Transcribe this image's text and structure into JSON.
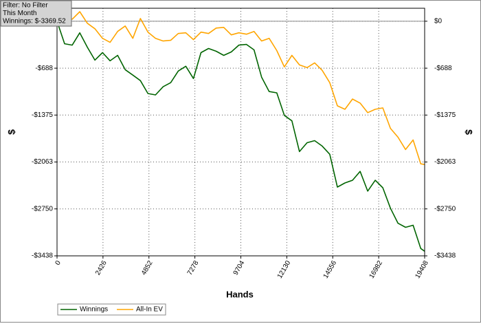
{
  "chart_data": {
    "type": "line",
    "annotations": [
      "Filter: No Filter",
      "This Month",
      "Winnings: $-3369.52"
    ],
    "x_label": "Hands",
    "y_label": "$",
    "x": [
      0,
      400,
      800,
      1200,
      1600,
      2000,
      2400,
      2800,
      3200,
      3600,
      4000,
      4400,
      4800,
      5200,
      5600,
      6000,
      6400,
      6800,
      7200,
      7600,
      8000,
      8400,
      8800,
      9200,
      9600,
      10000,
      10400,
      10800,
      11200,
      11600,
      12000,
      12400,
      12800,
      13200,
      13600,
      14000,
      14400,
      14800,
      15200,
      15600,
      16000,
      16400,
      16800,
      17200,
      17600,
      18000,
      18400,
      18800,
      19200,
      19408
    ],
    "series": [
      {
        "name": "Winnings",
        "color": "#006400",
        "values": [
          0,
          -330,
          -350,
          -170,
          -380,
          -570,
          -460,
          -580,
          -500,
          -710,
          -790,
          -870,
          -1060,
          -1080,
          -960,
          -900,
          -730,
          -660,
          -840,
          -460,
          -400,
          -440,
          -500,
          -450,
          -350,
          -340,
          -420,
          -820,
          -1030,
          -1050,
          -1380,
          -1460,
          -1910,
          -1780,
          -1750,
          -1830,
          -1950,
          -2430,
          -2370,
          -2330,
          -2200,
          -2490,
          -2330,
          -2440,
          -2740,
          -2960,
          -3020,
          -2990,
          -3330,
          -3370
        ]
      },
      {
        "name": "All-In EV",
        "color": "#ffa500",
        "values": [
          0,
          60,
          30,
          140,
          -30,
          -110,
          -250,
          -310,
          -150,
          -70,
          -250,
          40,
          -160,
          -250,
          -290,
          -280,
          -180,
          -170,
          -270,
          -160,
          -180,
          -100,
          -90,
          -200,
          -170,
          -190,
          -150,
          -290,
          -250,
          -430,
          -670,
          -500,
          -640,
          -680,
          -610,
          -720,
          -900,
          -1240,
          -1290,
          -1140,
          -1200,
          -1340,
          -1290,
          -1270,
          -1570,
          -1700,
          -1880,
          -1740,
          -2090,
          -2100
        ]
      }
    ],
    "xlim": [
      0,
      19408
    ],
    "xticks": [
      0,
      2426,
      4852,
      7278,
      9704,
      12130,
      14556,
      16982,
      19408
    ],
    "ylim": [
      -3438,
      190
    ],
    "yticks": [
      {
        "value": 0,
        "label": "$0"
      },
      {
        "value": -688,
        "label": "-$688"
      },
      {
        "value": -1375,
        "label": "-$1375"
      },
      {
        "value": -2063,
        "label": "-$2063"
      },
      {
        "value": -2750,
        "label": "-$2750"
      },
      {
        "value": -3438,
        "label": "-$3438"
      }
    ],
    "grid": true
  }
}
